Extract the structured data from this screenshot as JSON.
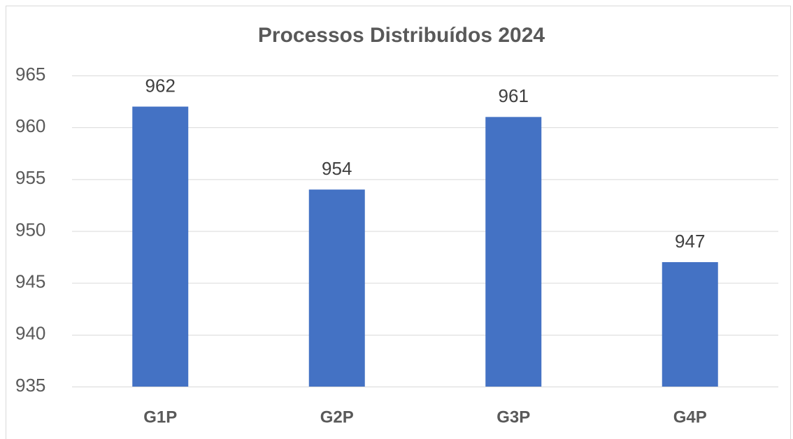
{
  "chart_data": {
    "type": "bar",
    "title": "Processos Distribuídos 2024",
    "categories": [
      "G1P",
      "G2P",
      "G3P",
      "G4P"
    ],
    "values": [
      962,
      954,
      961,
      947
    ],
    "color": "#4472c4",
    "ylim": [
      935,
      965
    ],
    "yticks": [
      935,
      940,
      945,
      950,
      955,
      960,
      965
    ],
    "grid": true,
    "data_labels": true
  }
}
